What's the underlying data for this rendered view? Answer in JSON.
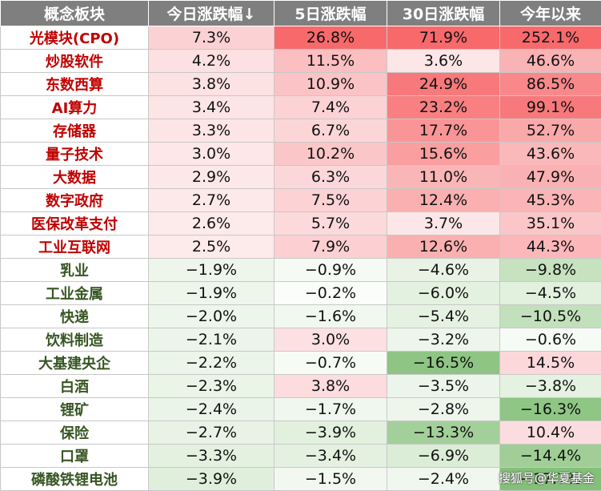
{
  "headers": [
    "概念板块",
    "今日涨跌幅↓",
    "5日涨跌幅",
    "30日涨跌幅",
    "今年以来"
  ],
  "rows": [
    {
      "name": "光模块(CPO)",
      "dir": "up",
      "vals": [
        "7.3%",
        "26.8%",
        "71.9%",
        "252.1%"
      ],
      "colors": [
        "#fcd1d3",
        "#f8696b",
        "#f8696b",
        "#f8696b"
      ]
    },
    {
      "name": "炒股软件",
      "dir": "up",
      "vals": [
        "4.2%",
        "11.5%",
        "3.6%",
        "46.6%"
      ],
      "colors": [
        "#fde0e1",
        "#fbbfc1",
        "#fde6e7",
        "#fab3b5"
      ]
    },
    {
      "name": "东数西算",
      "dir": "up",
      "vals": [
        "3.8%",
        "10.9%",
        "24.9%",
        "86.5%"
      ],
      "colors": [
        "#fde2e3",
        "#fbc3c5",
        "#f8797b",
        "#f9888a"
      ]
    },
    {
      "name": "AI算力",
      "dir": "up",
      "vals": [
        "3.4%",
        "7.4%",
        "23.2%",
        "99.1%"
      ],
      "colors": [
        "#fde4e5",
        "#fcd2d4",
        "#f97f81",
        "#f8797b"
      ]
    },
    {
      "name": "存储器",
      "dir": "up",
      "vals": [
        "3.3%",
        "6.7%",
        "17.7%",
        "52.7%"
      ],
      "colors": [
        "#fde5e6",
        "#fcd6d7",
        "#f99597",
        "#faa9ab"
      ]
    },
    {
      "name": "量子技术",
      "dir": "up",
      "vals": [
        "3.0%",
        "10.2%",
        "15.6%",
        "43.6%"
      ],
      "colors": [
        "#fde7e8",
        "#fbc6c8",
        "#fa9ea0",
        "#fbb8ba"
      ]
    },
    {
      "name": "大数据",
      "dir": "up",
      "vals": [
        "2.9%",
        "6.3%",
        "11.0%",
        "47.9%"
      ],
      "colors": [
        "#fde8e9",
        "#fcd7d9",
        "#fab5b7",
        "#fab1b3"
      ]
    },
    {
      "name": "数字政府",
      "dir": "up",
      "vals": [
        "2.7%",
        "7.5%",
        "12.4%",
        "45.3%"
      ],
      "colors": [
        "#fde9ea",
        "#fcd2d4",
        "#faafb1",
        "#fbb5b7"
      ]
    },
    {
      "name": "医保改革支付",
      "dir": "up",
      "vals": [
        "2.6%",
        "5.7%",
        "3.7%",
        "35.1%"
      ],
      "colors": [
        "#fdeaeb",
        "#fcdadb",
        "#fde6e7",
        "#fbc6c8"
      ]
    },
    {
      "name": "工业互联网",
      "dir": "up",
      "vals": [
        "2.5%",
        "7.9%",
        "12.6%",
        "44.3%"
      ],
      "colors": [
        "#fdeaeb",
        "#fcd0d2",
        "#faafb1",
        "#fbb7b9"
      ]
    },
    {
      "name": "乳业",
      "dir": "down",
      "vals": [
        "−1.9%",
        "−0.9%",
        "−4.6%",
        "−9.8%"
      ],
      "colors": [
        "#eef6ec",
        "#f6faf5",
        "#e8f3e5",
        "#c6e2bf"
      ]
    },
    {
      "name": "工业金属",
      "dir": "down",
      "vals": [
        "−1.9%",
        "−0.2%",
        "−6.0%",
        "−4.5%"
      ],
      "colors": [
        "#eef6ec",
        "#fbfdfa",
        "#e3f1e0",
        "#e2f0de"
      ]
    },
    {
      "name": "快递",
      "dir": "down",
      "vals": [
        "−2.0%",
        "−1.6%",
        "−5.4%",
        "−10.5%"
      ],
      "colors": [
        "#edf6eb",
        "#f1f8ef",
        "#e5f2e2",
        "#c2e0bb"
      ]
    },
    {
      "name": "饮料制造",
      "dir": "down",
      "vals": [
        "−2.1%",
        "3.0%",
        "−3.2%",
        "−0.6%"
      ],
      "colors": [
        "#ecf5ea",
        "#fde0e1",
        "#edf6eb",
        "#f7fbf6"
      ]
    },
    {
      "name": "大基建央企",
      "dir": "down",
      "vals": [
        "−2.2%",
        "−0.7%",
        "−16.5%",
        "14.5%"
      ],
      "colors": [
        "#ebf5e9",
        "#f7fbf6",
        "#8ec584",
        "#fcd8da"
      ]
    },
    {
      "name": "白酒",
      "dir": "down",
      "vals": [
        "−2.3%",
        "3.8%",
        "−3.5%",
        "−3.8%"
      ],
      "colors": [
        "#eaf5e8",
        "#fddcdd",
        "#ecf5ea",
        "#e5f2e2"
      ]
    },
    {
      "name": "锂矿",
      "dir": "down",
      "vals": [
        "−2.4%",
        "−1.7%",
        "−2.8%",
        "−16.3%"
      ],
      "colors": [
        "#eaf4e8",
        "#f0f7ee",
        "#eef6ec",
        "#8fc685"
      ]
    },
    {
      "name": "保险",
      "dir": "down",
      "vals": [
        "−2.7%",
        "−3.9%",
        "−13.3%",
        "10.4%"
      ],
      "colors": [
        "#e8f3e5",
        "#e2f0de",
        "#a3d09a",
        "#fcdddf"
      ]
    },
    {
      "name": "口罩",
      "dir": "down",
      "vals": [
        "−3.3%",
        "−3.4%",
        "−6.9%",
        "−14.4%"
      ],
      "colors": [
        "#e4f1e1",
        "#e4f1e1",
        "#dcedd7",
        "#a0ce96"
      ]
    },
    {
      "name": "磷酸铁锂电池",
      "dir": "down",
      "vals": [
        "−3.9%",
        "−1.5%",
        "−2.4%",
        "−17.7%"
      ],
      "colors": [
        "#e0efdc",
        "#f2f8f0",
        "#f0f7ee",
        "#85c07a"
      ]
    }
  ],
  "watermark": "搜狐号@华夏基金"
}
